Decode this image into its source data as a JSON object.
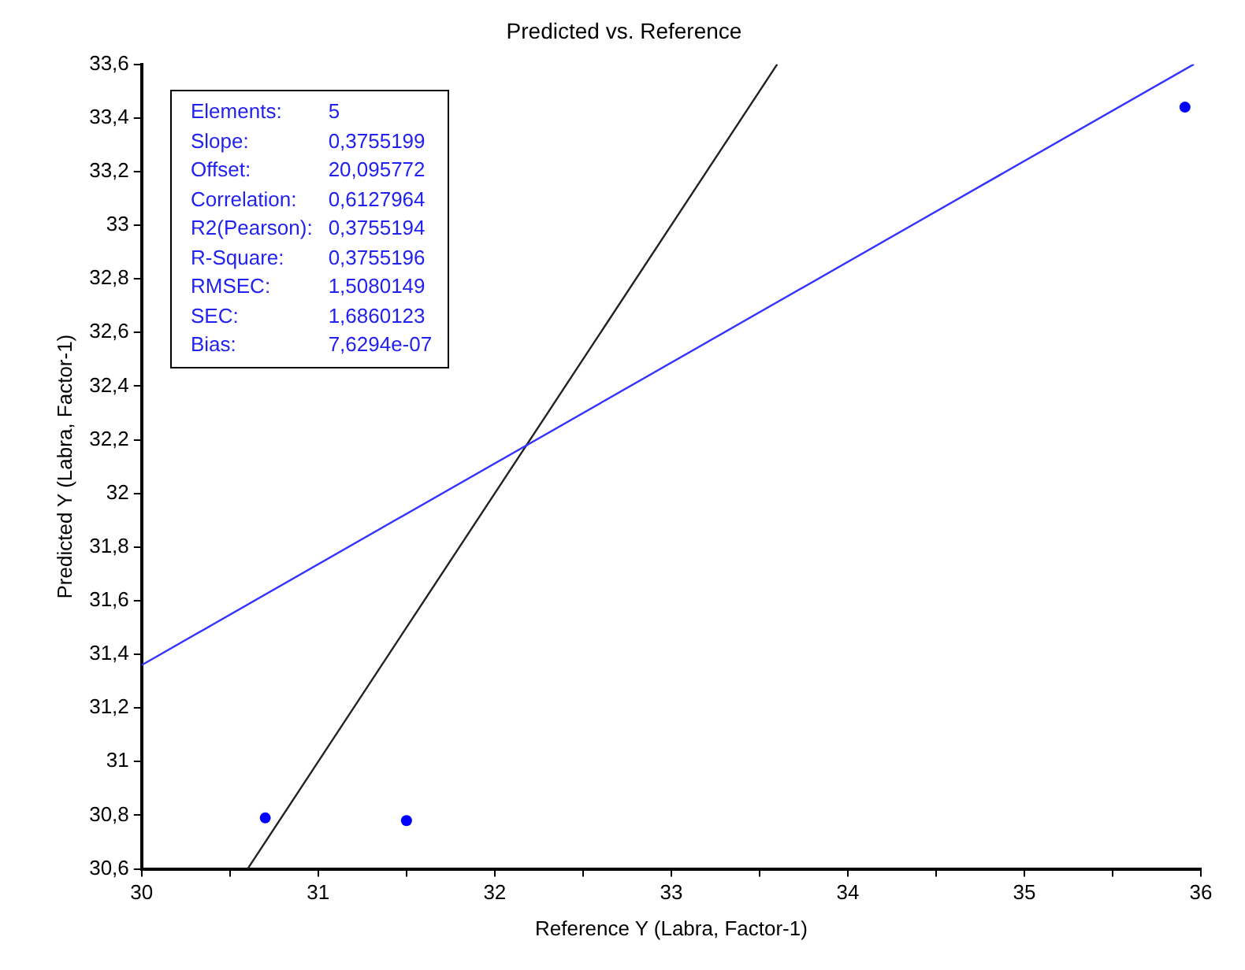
{
  "chart_data": {
    "type": "scatter",
    "title": "Predicted vs. Reference",
    "xlabel": "Reference Y (Labra, Factor-1)",
    "ylabel": "Predicted Y (Labra, Factor-1)",
    "annotations": [
      "Elements: 5",
      "Slope: 0,3755199",
      "Offset: 20,095772",
      "Correlation: 0,6127964",
      "R2(Pearson): 0,3755194",
      "R-Square: 0,3755196",
      "RMSEC: 1,5080149",
      "SEC: 1,6860123",
      "Bias: 7,6294e-07"
    ],
    "x": [
      30.7,
      31.5,
      35.91
    ],
    "series": [
      {
        "color": "#0000ff",
        "marker": "circle",
        "values": [
          30.79,
          30.78,
          33.44
        ]
      },
      {
        "type": "line",
        "color": "#3333ff",
        "marker": "none",
        "x": [
          30,
          35.96
        ],
        "values": [
          31.36,
          33.6
        ]
      },
      {
        "type": "line",
        "color": "#222222",
        "marker": "none",
        "x": [
          30.6,
          33.6
        ],
        "values": [
          30.6,
          33.6
        ]
      }
    ],
    "grid": false,
    "legend": false,
    "xlim": [
      30,
      36
    ],
    "xticks": [
      30,
      {
        "value": 30.5,
        "label": null
      },
      31,
      {
        "value": 31.5,
        "label": null
      },
      32,
      {
        "value": 32.5,
        "label": null
      },
      33,
      {
        "value": 33.5,
        "label": null
      },
      34,
      {
        "value": 34.5,
        "label": null
      },
      35,
      {
        "value": 35.5,
        "label": null
      },
      36
    ],
    "ylim": [
      30.6,
      33.6
    ],
    "yticks": [
      {
        "value": 30.6,
        "label": "30,6"
      },
      {
        "value": 30.8,
        "label": "30,8"
      },
      31,
      {
        "value": 31.2,
        "label": "31,2"
      },
      {
        "value": 31.4,
        "label": "31,4"
      },
      {
        "value": 31.6,
        "label": "31,6"
      },
      {
        "value": 31.8,
        "label": "31,8"
      },
      32,
      {
        "value": 32.2,
        "label": "32,2"
      },
      {
        "value": 32.4,
        "label": "32,4"
      },
      {
        "value": 32.6,
        "label": "32,6"
      },
      {
        "value": 32.8,
        "label": "32,8"
      },
      33,
      {
        "value": 33.2,
        "label": "33,2"
      },
      {
        "value": 33.4,
        "label": "33,4"
      },
      {
        "value": 33.6,
        "label": "33,6"
      }
    ]
  }
}
